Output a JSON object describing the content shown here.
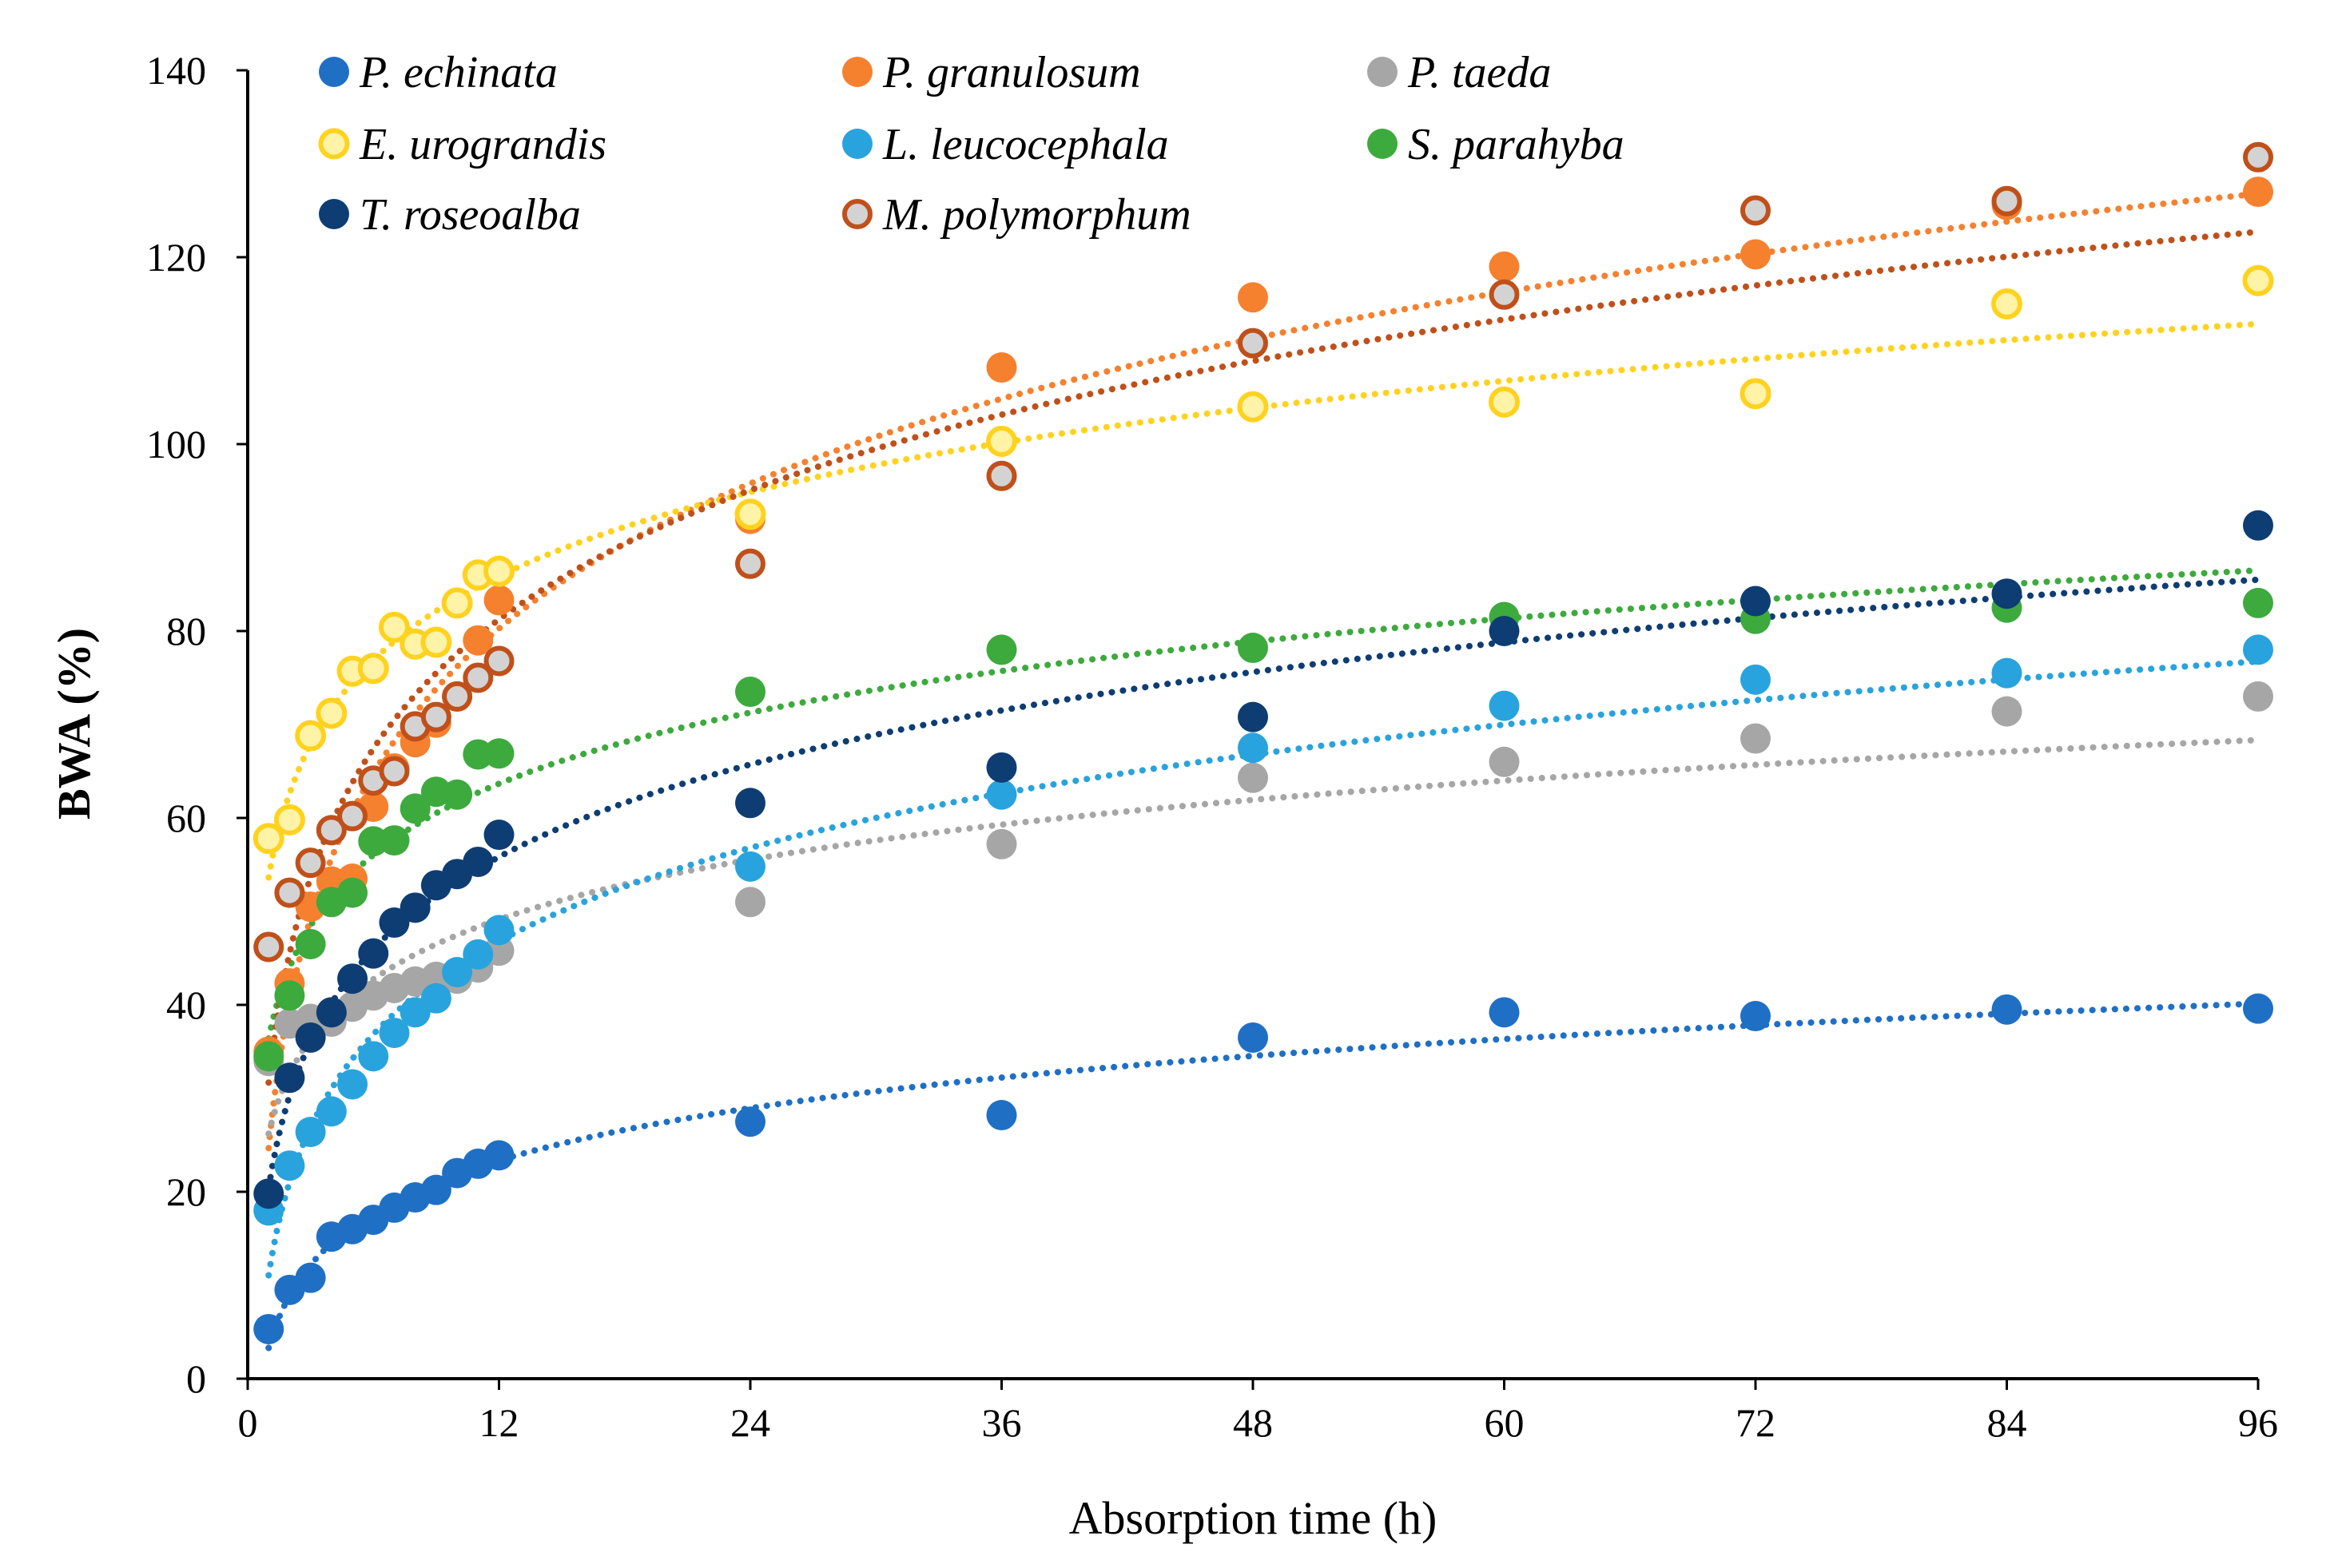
{
  "chart_data": {
    "type": "scatter",
    "title": "",
    "xlabel": "Absorption time (h)",
    "ylabel": "BWA (%)",
    "xlim": [
      0,
      96
    ],
    "ylim": [
      0,
      140
    ],
    "xticks": [
      0,
      12,
      24,
      36,
      48,
      60,
      72,
      84,
      96
    ],
    "yticks": [
      0,
      20,
      40,
      60,
      80,
      100,
      120,
      140
    ],
    "grid": false,
    "legend_position": "top-left",
    "trendline": "logarithmic (dotted)",
    "series": [
      {
        "name": "P. echinata",
        "color": "#1F6FC5",
        "marker": "filled-circle",
        "x": [
          1,
          2,
          3,
          4,
          5,
          6,
          7,
          8,
          9,
          10,
          11,
          12,
          24,
          36,
          48,
          60,
          72,
          84,
          96
        ],
        "y": [
          5.3,
          9.5,
          10.8,
          15.2,
          16.0,
          17.0,
          18.3,
          19.4,
          20.2,
          22.0,
          23.0,
          23.9,
          27.5,
          28.2,
          36.5,
          39.2,
          38.8,
          39.5,
          39.6
        ]
      },
      {
        "name": "P. granulosum",
        "color": "#F5812F",
        "marker": "filled-circle",
        "x": [
          1,
          2,
          3,
          4,
          5,
          6,
          7,
          8,
          9,
          10,
          11,
          12,
          24,
          36,
          48,
          60,
          72,
          84,
          96
        ],
        "y": [
          35.0,
          42.3,
          50.5,
          53.2,
          53.5,
          61.2,
          65.3,
          68.1,
          70.2,
          73.0,
          79.0,
          83.3,
          92.0,
          108.2,
          115.7,
          119.0,
          120.3,
          125.6,
          127.0
        ]
      },
      {
        "name": "P. taeda",
        "color": "#A6A6A6",
        "marker": "filled-circle",
        "x": [
          1,
          2,
          3,
          4,
          5,
          6,
          7,
          8,
          9,
          10,
          11,
          12,
          24,
          36,
          48,
          60,
          72,
          84,
          96
        ],
        "y": [
          34.0,
          38.0,
          38.5,
          38.2,
          39.8,
          41.0,
          41.8,
          42.5,
          43.0,
          42.8,
          44.0,
          45.8,
          51.0,
          57.2,
          64.3,
          66.0,
          68.5,
          71.4,
          73.0
        ]
      },
      {
        "name": "E. urograndis",
        "color": "#FFD21F",
        "marker": "ring-circle",
        "x": [
          1,
          2,
          3,
          4,
          5,
          6,
          7,
          8,
          9,
          10,
          11,
          12,
          24,
          36,
          48,
          60,
          72,
          84,
          96
        ],
        "y": [
          57.8,
          59.8,
          68.8,
          71.2,
          75.7,
          76.0,
          80.4,
          78.6,
          78.8,
          83.0,
          86.0,
          86.4,
          92.5,
          100.3,
          104.0,
          104.5,
          105.4,
          115.0,
          117.5
        ]
      },
      {
        "name": "L. leucocephala",
        "color": "#29A3DD",
        "marker": "filled-circle",
        "x": [
          1,
          2,
          3,
          4,
          5,
          6,
          7,
          8,
          9,
          10,
          11,
          12,
          24,
          36,
          48,
          60,
          72,
          84,
          96
        ],
        "y": [
          18.0,
          22.8,
          26.4,
          28.6,
          31.5,
          34.5,
          37.0,
          39.2,
          40.7,
          43.5,
          45.4,
          48.0,
          54.8,
          62.5,
          67.5,
          72.0,
          74.8,
          75.5,
          78.0
        ]
      },
      {
        "name": "S.  parahyba",
        "color": "#3DAA3D",
        "marker": "filled-circle",
        "x": [
          1,
          2,
          3,
          4,
          5,
          6,
          7,
          8,
          9,
          10,
          11,
          12,
          24,
          36,
          48,
          60,
          72,
          84,
          96
        ],
        "y": [
          34.5,
          41.0,
          46.5,
          51.0,
          52.0,
          57.5,
          57.6,
          61.0,
          62.8,
          62.5,
          66.8,
          66.9,
          73.5,
          78.0,
          78.2,
          81.5,
          81.3,
          82.5,
          83.0
        ]
      },
      {
        "name": "T. roseoalba",
        "color": "#0E3D73",
        "marker": "filled-circle",
        "x": [
          1,
          2,
          3,
          4,
          5,
          6,
          7,
          8,
          9,
          10,
          11,
          12,
          24,
          36,
          48,
          60,
          72,
          84,
          96
        ],
        "y": [
          19.8,
          32.2,
          36.5,
          39.2,
          42.8,
          45.5,
          48.8,
          50.4,
          52.8,
          54.0,
          55.3,
          58.2,
          61.6,
          65.4,
          70.8,
          80.0,
          83.2,
          84.0,
          91.3
        ]
      },
      {
        "name": "M. polymorphum",
        "color": "#C0501A",
        "fill": "#D3D3D3",
        "marker": "hollow-circle",
        "x": [
          1,
          2,
          3,
          4,
          5,
          6,
          7,
          8,
          9,
          10,
          11,
          12,
          24,
          36,
          48,
          60,
          72,
          84,
          96
        ],
        "y": [
          46.2,
          52.0,
          55.2,
          58.7,
          60.2,
          64.0,
          65.0,
          69.8,
          70.8,
          73.0,
          75.0,
          76.8,
          87.2,
          96.6,
          110.8,
          116.0,
          125.0,
          126.0,
          130.7
        ]
      }
    ]
  }
}
